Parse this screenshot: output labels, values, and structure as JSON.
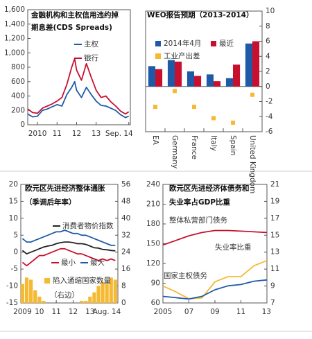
{
  "chart_data": [
    {
      "type": "line",
      "title": [
        "金融机构和主权信用违约掉",
        "期息差(CDS Spreads)"
      ],
      "x": [
        2009.5,
        2009.75,
        2010,
        2010.25,
        2010.5,
        2010.75,
        2011,
        2011.25,
        2011.5,
        2011.75,
        2011.9,
        2012,
        2012.25,
        2012.5,
        2012.75,
        2013,
        2013.25,
        2013.5,
        2013.75,
        2014,
        2014.25,
        2014.5,
        2014.67
      ],
      "xlim": [
        2009.5,
        2014.75
      ],
      "xticks": [
        2010,
        {
          "value": 2011,
          "label": "11"
        },
        {
          "value": 2012,
          "label": "12"
        },
        {
          "value": 2013,
          "label": "13"
        },
        {
          "value": 2014.67,
          "label": "Sep. 14"
        }
      ],
      "ylim": [
        0,
        1600
      ],
      "yticks": [
        0,
        200,
        400,
        600,
        800,
        {
          "value": 1000,
          "label": "1,000"
        },
        {
          "value": 1200,
          "label": "1,200"
        },
        {
          "value": 1400,
          "label": "1,400"
        },
        {
          "value": 1600,
          "label": "1,600"
        }
      ],
      "series": [
        {
          "name": "主权",
          "color": "#1f5aa6",
          "values": [
            150,
            110,
            120,
            200,
            220,
            250,
            280,
            260,
            420,
            520,
            600,
            480,
            380,
            520,
            420,
            330,
            270,
            260,
            230,
            200,
            140,
            100,
            120
          ]
        },
        {
          "name": "银行",
          "color": "#c8102e",
          "values": [
            220,
            170,
            160,
            230,
            260,
            290,
            330,
            380,
            560,
            800,
            920,
            760,
            620,
            850,
            660,
            480,
            380,
            400,
            320,
            260,
            190,
            150,
            180
          ]
        }
      ]
    },
    {
      "type": "bar",
      "title": [
        "WEO报告预期（2013-2014）"
      ],
      "categories": [
        "EA",
        "Germany",
        "France",
        "Italy",
        "Spain",
        "United Kingdom"
      ],
      "ylim": [
        -6,
        10
      ],
      "yticks": [
        -6,
        -4,
        -2,
        0,
        2,
        4,
        6,
        8,
        10
      ],
      "series": [
        {
          "name": "2014年4月",
          "color": "#1f5aa6",
          "type": "bar",
          "values": [
            2.7,
            3.5,
            2.0,
            1.6,
            1.1,
            5.7
          ]
        },
        {
          "name": "最近",
          "color": "#c8102e",
          "type": "bar",
          "values": [
            2.3,
            3.3,
            1.4,
            0.7,
            2.9,
            6.0
          ]
        },
        {
          "name": "工业产出差",
          "color": "#f5b932",
          "type": "scatter",
          "values": [
            -2.7,
            -0.6,
            -2.7,
            -4.2,
            -4.8,
            -1.1
          ]
        }
      ]
    },
    {
      "type": "combo",
      "title": [
        "欧元区先进经济整体通胀",
        "（季调后年率）"
      ],
      "x": [
        2009,
        2009.25,
        2009.5,
        2009.75,
        2010,
        2010.25,
        2010.5,
        2010.75,
        2011,
        2011.25,
        2011.5,
        2011.75,
        2012,
        2012.25,
        2012.5,
        2012.75,
        2013,
        2013.25,
        2013.5,
        2013.75,
        2014,
        2014.25,
        2014.5
      ],
      "xlim": [
        2008.9,
        2014.65
      ],
      "xticks": [
        2009,
        {
          "value": 2010,
          "label": "10"
        },
        {
          "value": 2011,
          "label": "11"
        },
        {
          "value": 2012,
          "label": "12"
        },
        {
          "value": 2013,
          "label": "13"
        },
        {
          "value": 2014.58,
          "label": "Aug. 14"
        }
      ],
      "ylim": [
        -15,
        20
      ],
      "yticks": [
        -15,
        -10,
        -5,
        0,
        5,
        10,
        15,
        20
      ],
      "y2lim": [
        0,
        56
      ],
      "y2ticks": [
        0,
        8,
        16,
        24,
        32,
        40,
        48,
        56
      ],
      "series": [
        {
          "name": "消费者物价指数",
          "color": "#222222",
          "type": "line",
          "values": [
            0.5,
            -0.5,
            0,
            0.5,
            1,
            1.5,
            1.8,
            2,
            2.5,
            2.8,
            3,
            3,
            2.8,
            2.5,
            2.5,
            2.3,
            1.8,
            1.3,
            1.2,
            0.8,
            0.7,
            0.5,
            0.4
          ]
        },
        {
          "name": "最小",
          "color": "#c8102e",
          "type": "line",
          "values": [
            -3,
            -4,
            -3,
            -2,
            -1,
            -1,
            -0.5,
            0,
            0.5,
            1,
            1,
            0.5,
            0,
            -0.5,
            -0.5,
            -1,
            -1.5,
            -2,
            -2.5,
            -2,
            -2.5,
            -2,
            -2.5
          ]
        },
        {
          "name": "最大",
          "color": "#1f5aa6",
          "type": "line",
          "values": [
            4,
            3,
            3,
            3.5,
            4,
            4.5,
            5,
            5.5,
            6,
            6,
            6.5,
            6,
            5.5,
            5.5,
            5,
            5,
            4.5,
            4,
            3.5,
            3,
            2.5,
            2,
            2
          ]
        },
        {
          "name": "陷入通缩国家数量",
          "color": "#f5b932",
          "type": "bar",
          "axis": "y2",
          "values": [
            9,
            12,
            11,
            6,
            3,
            1,
            0,
            0,
            0,
            0,
            0,
            0,
            0,
            0,
            1,
            1,
            3,
            5,
            8,
            10,
            9,
            12,
            11
          ]
        }
      ],
      "annotations": [
        "（右边）"
      ]
    },
    {
      "type": "line",
      "title": [
        "欧元区先进经济体债务和",
        "失业率占GDP比重"
      ],
      "x": [
        2005,
        2006,
        2007,
        2008,
        2009,
        2010,
        2011,
        2012,
        2013
      ],
      "xlim": [
        2005,
        2013
      ],
      "xticks": [
        2005,
        {
          "value": 2007,
          "label": "07"
        },
        {
          "value": 2009,
          "label": "09"
        },
        {
          "value": 2011,
          "label": "11"
        },
        {
          "value": 2013,
          "label": "13"
        }
      ],
      "ylim": [
        60,
        240
      ],
      "yticks": [
        60,
        90,
        120,
        150,
        180,
        210,
        240
      ],
      "y2lim": [
        7,
        21
      ],
      "y2ticks": [
        7,
        9,
        11,
        13,
        15,
        17,
        19,
        21
      ],
      "series": [
        {
          "name": "整体私营部门债务",
          "color": "#c8102e",
          "values": [
            148,
            155,
            162,
            167,
            170,
            170,
            169,
            168,
            167
          ]
        },
        {
          "name": "失业率比重",
          "color": "#f5b932",
          "axis": "y2",
          "values": [
            9.0,
            8.3,
            7.5,
            7.6,
            9.5,
            10.1,
            10.1,
            11.4,
            12.0
          ]
        },
        {
          "name": "国家主权债务",
          "color": "#1f5aa6",
          "values": [
            70,
            68,
            66,
            70,
            80,
            86,
            88,
            93,
            95
          ]
        }
      ]
    }
  ]
}
